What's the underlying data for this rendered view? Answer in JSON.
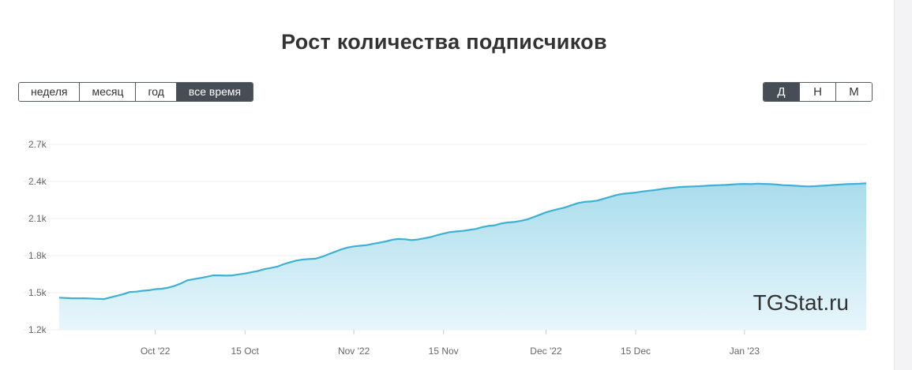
{
  "title": "Рост количества подписчиков",
  "range_buttons": [
    {
      "label": "неделя",
      "active": false
    },
    {
      "label": "месяц",
      "active": false
    },
    {
      "label": "год",
      "active": false
    },
    {
      "label": "все время",
      "active": true
    }
  ],
  "granularity_buttons": [
    {
      "label": "Д",
      "active": true
    },
    {
      "label": "Н",
      "active": false
    },
    {
      "label": "М",
      "active": false
    }
  ],
  "watermark": "TGStat.ru",
  "colors": {
    "line": "#3fb0d3",
    "fill_top": "#a9dcec",
    "fill_bottom": "#e8f6fb",
    "grid": "#ececec",
    "active_button": "#464d55"
  },
  "chart_data": {
    "type": "area",
    "title": "Рост количества подписчиков",
    "xlabel": "",
    "ylabel": "",
    "x_range": [
      "2022-09-16",
      "2023-01-20"
    ],
    "ylim": [
      1200,
      2700
    ],
    "y_ticks": [
      1200,
      1500,
      1800,
      2100,
      2400,
      2700
    ],
    "y_tick_labels": [
      "1.2k",
      "1.5k",
      "1.8k",
      "2.1k",
      "2.4k",
      "2.7k"
    ],
    "x_ticks": [
      {
        "date": "2022-10-01",
        "label": "Oct '22"
      },
      {
        "date": "2022-10-15",
        "label": "15 Oct"
      },
      {
        "date": "2022-11-01",
        "label": "Nov '22"
      },
      {
        "date": "2022-11-15",
        "label": "15 Nov"
      },
      {
        "date": "2022-12-01",
        "label": "Dec '22"
      },
      {
        "date": "2022-12-15",
        "label": "15 Dec"
      },
      {
        "date": "2023-01-01",
        "label": "Jan '23"
      }
    ],
    "grid": true,
    "legend": false,
    "series": [
      {
        "points": [
          [
            "2022-09-16",
            1460
          ],
          [
            "2022-09-18",
            1455
          ],
          [
            "2022-09-20",
            1455
          ],
          [
            "2022-09-22",
            1450
          ],
          [
            "2022-09-23",
            1448
          ],
          [
            "2022-09-24",
            1462
          ],
          [
            "2022-09-25",
            1475
          ],
          [
            "2022-09-26",
            1488
          ],
          [
            "2022-09-27",
            1505
          ],
          [
            "2022-09-28",
            1508
          ],
          [
            "2022-09-29",
            1515
          ],
          [
            "2022-09-30",
            1520
          ],
          [
            "2022-10-01",
            1528
          ],
          [
            "2022-10-02",
            1532
          ],
          [
            "2022-10-03",
            1540
          ],
          [
            "2022-10-04",
            1555
          ],
          [
            "2022-10-05",
            1575
          ],
          [
            "2022-10-06",
            1600
          ],
          [
            "2022-10-07",
            1610
          ],
          [
            "2022-10-08",
            1618
          ],
          [
            "2022-10-09",
            1628
          ],
          [
            "2022-10-10",
            1640
          ],
          [
            "2022-10-11",
            1640
          ],
          [
            "2022-10-12",
            1638
          ],
          [
            "2022-10-13",
            1640
          ],
          [
            "2022-10-14",
            1648
          ],
          [
            "2022-10-15",
            1655
          ],
          [
            "2022-10-16",
            1665
          ],
          [
            "2022-10-17",
            1675
          ],
          [
            "2022-10-18",
            1690
          ],
          [
            "2022-10-19",
            1700
          ],
          [
            "2022-10-20",
            1710
          ],
          [
            "2022-10-21",
            1730
          ],
          [
            "2022-10-22",
            1745
          ],
          [
            "2022-10-23",
            1760
          ],
          [
            "2022-10-24",
            1768
          ],
          [
            "2022-10-25",
            1772
          ],
          [
            "2022-10-26",
            1775
          ],
          [
            "2022-10-27",
            1790
          ],
          [
            "2022-10-28",
            1810
          ],
          [
            "2022-10-29",
            1830
          ],
          [
            "2022-10-30",
            1850
          ],
          [
            "2022-10-31",
            1865
          ],
          [
            "2022-11-01",
            1875
          ],
          [
            "2022-11-02",
            1880
          ],
          [
            "2022-11-03",
            1885
          ],
          [
            "2022-11-04",
            1895
          ],
          [
            "2022-11-05",
            1905
          ],
          [
            "2022-11-06",
            1915
          ],
          [
            "2022-11-07",
            1928
          ],
          [
            "2022-11-08",
            1935
          ],
          [
            "2022-11-09",
            1932
          ],
          [
            "2022-11-10",
            1925
          ],
          [
            "2022-11-11",
            1930
          ],
          [
            "2022-11-12",
            1940
          ],
          [
            "2022-11-13",
            1950
          ],
          [
            "2022-11-14",
            1965
          ],
          [
            "2022-11-15",
            1978
          ],
          [
            "2022-11-16",
            1990
          ],
          [
            "2022-11-17",
            1995
          ],
          [
            "2022-11-18",
            2000
          ],
          [
            "2022-11-19",
            2008
          ],
          [
            "2022-11-20",
            2015
          ],
          [
            "2022-11-21",
            2030
          ],
          [
            "2022-11-22",
            2040
          ],
          [
            "2022-11-23",
            2045
          ],
          [
            "2022-11-24",
            2060
          ],
          [
            "2022-11-25",
            2068
          ],
          [
            "2022-11-26",
            2072
          ],
          [
            "2022-11-27",
            2080
          ],
          [
            "2022-11-28",
            2092
          ],
          [
            "2022-11-29",
            2110
          ],
          [
            "2022-11-30",
            2130
          ],
          [
            "2022-12-01",
            2150
          ],
          [
            "2022-12-02",
            2165
          ],
          [
            "2022-12-03",
            2178
          ],
          [
            "2022-12-04",
            2190
          ],
          [
            "2022-12-05",
            2208
          ],
          [
            "2022-12-06",
            2225
          ],
          [
            "2022-12-07",
            2235
          ],
          [
            "2022-12-08",
            2238
          ],
          [
            "2022-12-09",
            2245
          ],
          [
            "2022-12-10",
            2260
          ],
          [
            "2022-12-11",
            2275
          ],
          [
            "2022-12-12",
            2290
          ],
          [
            "2022-12-13",
            2300
          ],
          [
            "2022-12-14",
            2305
          ],
          [
            "2022-12-15",
            2310
          ],
          [
            "2022-12-16",
            2318
          ],
          [
            "2022-12-17",
            2325
          ],
          [
            "2022-12-18",
            2330
          ],
          [
            "2022-12-19",
            2338
          ],
          [
            "2022-12-20",
            2345
          ],
          [
            "2022-12-21",
            2350
          ],
          [
            "2022-12-22",
            2355
          ],
          [
            "2022-12-23",
            2358
          ],
          [
            "2022-12-24",
            2360
          ],
          [
            "2022-12-25",
            2362
          ],
          [
            "2022-12-26",
            2365
          ],
          [
            "2022-12-27",
            2368
          ],
          [
            "2022-12-28",
            2370
          ],
          [
            "2022-12-29",
            2372
          ],
          [
            "2022-12-30",
            2375
          ],
          [
            "2022-12-31",
            2378
          ],
          [
            "2023-01-01",
            2380
          ],
          [
            "2023-01-02",
            2378
          ],
          [
            "2023-01-03",
            2382
          ],
          [
            "2023-01-04",
            2380
          ],
          [
            "2023-01-05",
            2378
          ],
          [
            "2023-01-06",
            2375
          ],
          [
            "2023-01-07",
            2370
          ],
          [
            "2023-01-08",
            2368
          ],
          [
            "2023-01-09",
            2365
          ],
          [
            "2023-01-10",
            2362
          ],
          [
            "2023-01-11",
            2360
          ],
          [
            "2023-01-12",
            2362
          ],
          [
            "2023-01-13",
            2365
          ],
          [
            "2023-01-14",
            2368
          ],
          [
            "2023-01-15",
            2372
          ],
          [
            "2023-01-16",
            2375
          ],
          [
            "2023-01-17",
            2378
          ],
          [
            "2023-01-18",
            2380
          ],
          [
            "2023-01-19",
            2382
          ],
          [
            "2023-01-20",
            2385
          ]
        ]
      }
    ]
  }
}
